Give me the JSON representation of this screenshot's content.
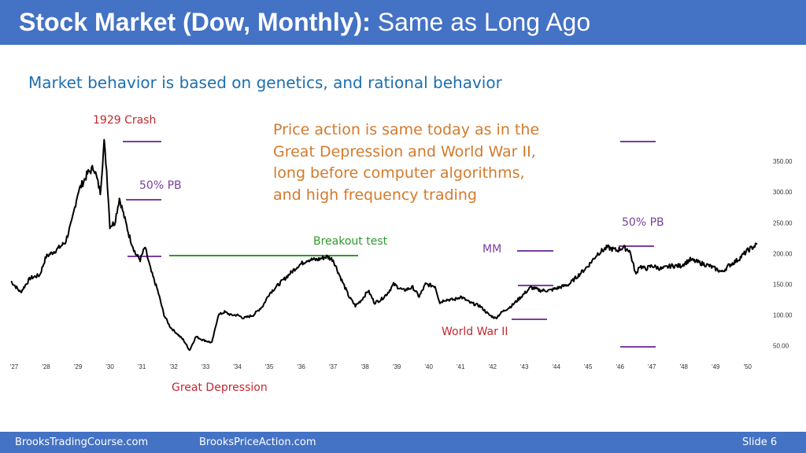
{
  "slide": {
    "title_bold": "Stock Market (Dow, Monthly):",
    "title_rest": " Same as Long Ago",
    "subtitle": "Market behavior is based on genetics, and rational behavior",
    "note_lines": [
      "Price action is same today as in the",
      "Great Depression and World War II,",
      "long before computer algorithms,",
      "and high frequency trading"
    ],
    "footer": {
      "site1": "BrooksTradingCourse.com",
      "site2": "BrooksPriceAction.com",
      "slide_label": "Slide 6"
    },
    "colors": {
      "header": "#4472c4",
      "red_label": "#c0282e",
      "purple": "#7a3fa0",
      "green": "#2e9a2e",
      "orange": "#d37a2b",
      "subtitle": "#1f6fad"
    }
  },
  "chart_data": {
    "type": "line",
    "x_tick_labels": [
      "'27",
      "'28",
      "'29",
      "'30",
      "'31",
      "'32",
      "'33",
      "'34",
      "'35",
      "'36",
      "'37",
      "'38",
      "'39",
      "'40",
      "'41",
      "'42",
      "'43",
      "'44",
      "'45",
      "'46",
      "'47",
      "'48",
      "'49",
      "'50"
    ],
    "y_ticks": [
      50,
      100,
      150,
      200,
      250,
      300,
      350
    ],
    "y_tick_labels": [
      "50.00",
      "100.00",
      "150.00",
      "200.00",
      "250.00",
      "300.00",
      "350.00"
    ],
    "xlim": [
      1926.9,
      1950.4
    ],
    "ylim": [
      42,
      382
    ],
    "series": [
      {
        "x": [
          1926.9,
          1927.2,
          1927.5,
          1927.8,
          1928.0,
          1928.3,
          1928.6,
          1928.8,
          1929.0,
          1929.3,
          1929.5,
          1929.7,
          1929.82,
          1929.9,
          1930.0,
          1930.15,
          1930.3,
          1930.45,
          1930.6,
          1930.8,
          1930.95,
          1931.1,
          1931.3,
          1931.5,
          1931.7,
          1931.9,
          1932.1,
          1932.3,
          1932.5,
          1932.7,
          1932.9,
          1933.2,
          1933.4,
          1933.6,
          1933.8,
          1934.0,
          1934.2,
          1934.5,
          1934.8,
          1935.0,
          1935.3,
          1935.6,
          1935.9,
          1936.2,
          1936.5,
          1936.8,
          1937.0,
          1937.2,
          1937.5,
          1937.7,
          1937.9,
          1938.1,
          1938.3,
          1938.5,
          1938.7,
          1938.9,
          1939.2,
          1939.5,
          1939.7,
          1939.9,
          1940.2,
          1940.35,
          1940.5,
          1940.8,
          1941.0,
          1941.3,
          1941.6,
          1941.9,
          1942.1,
          1942.3,
          1942.6,
          1942.9,
          1943.2,
          1943.5,
          1943.8,
          1944.1,
          1944.4,
          1944.7,
          1945.0,
          1945.3,
          1945.6,
          1945.9,
          1946.1,
          1946.3,
          1946.5,
          1946.6,
          1946.8,
          1947.0,
          1947.3,
          1947.6,
          1947.9,
          1948.2,
          1948.5,
          1948.8,
          1949.0,
          1949.2,
          1949.4,
          1949.7,
          1950.0,
          1950.3
        ],
        "y": [
          155,
          137,
          160,
          165,
          195,
          205,
          218,
          250,
          300,
          330,
          340,
          300,
          380,
          335,
          245,
          250,
          290,
          260,
          230,
          200,
          190,
          210,
          170,
          140,
          100,
          80,
          70,
          60,
          43,
          65,
          60,
          55,
          100,
          105,
          100,
          100,
          95,
          100,
          115,
          135,
          150,
          165,
          180,
          190,
          190,
          195,
          190,
          165,
          130,
          115,
          125,
          140,
          120,
          125,
          135,
          150,
          140,
          145,
          130,
          150,
          147,
          120,
          125,
          125,
          130,
          120,
          115,
          100,
          95,
          105,
          115,
          130,
          145,
          140,
          140,
          145,
          150,
          165,
          180,
          200,
          210,
          205,
          210,
          205,
          165,
          180,
          175,
          180,
          175,
          180,
          180,
          190,
          185,
          180,
          175,
          170,
          180,
          190,
          205,
          215
        ]
      }
    ],
    "annotations": [
      {
        "id": "crash",
        "text": "1929 Crash"
      },
      {
        "id": "pb1",
        "text": "50% PB"
      },
      {
        "id": "breakout",
        "text": "Breakout test"
      },
      {
        "id": "mm",
        "text": "MM"
      },
      {
        "id": "pb2",
        "text": "50% PB"
      },
      {
        "id": "ww2",
        "text": "World War II"
      },
      {
        "id": "depression",
        "text": "Great Depression"
      }
    ]
  }
}
